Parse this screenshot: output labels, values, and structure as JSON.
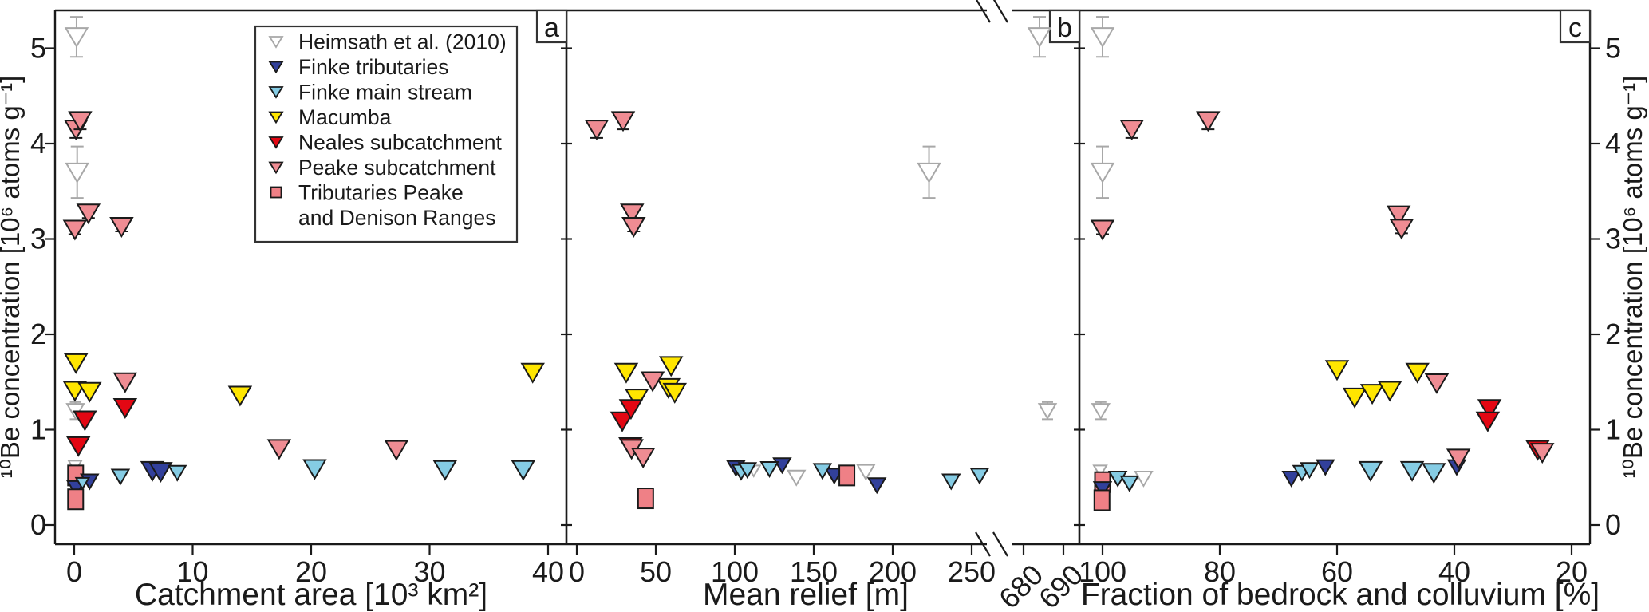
{
  "figure": {
    "y_axis_label": "¹⁰Be concentration [10⁶ atoms g⁻¹]",
    "y_ticks": [
      0,
      1,
      2,
      3,
      4,
      5
    ],
    "y_range": [
      0,
      5.4
    ]
  },
  "legend": {
    "items": [
      {
        "label": "Heimsath et al. (2010)",
        "marker": "triangle-down-open",
        "fill": "#ffffff",
        "stroke": "#a8a8a8"
      },
      {
        "label": "Finke tributaries",
        "marker": "triangle-down",
        "fill": "#32409b",
        "stroke": "#1a1a1a"
      },
      {
        "label": "Finke main stream",
        "marker": "triangle-down",
        "fill": "#85cce4",
        "stroke": "#1a1a1a"
      },
      {
        "label": "Macumba",
        "marker": "triangle-down",
        "fill": "#ffe600",
        "stroke": "#1a1a1a"
      },
      {
        "label": "Neales subcatchment",
        "marker": "triangle-down",
        "fill": "#e30713",
        "stroke": "#1a1a1a"
      },
      {
        "label": "Peake subcatchment",
        "marker": "triangle-down",
        "fill": "#ef8c93",
        "stroke": "#1a1a1a"
      },
      {
        "label": "Tributaries Peake",
        "label2": "and Denison Ranges",
        "marker": "square",
        "fill": "#ef8086",
        "stroke": "#1a1a1a"
      }
    ]
  },
  "chart_data": [
    {
      "panel_label": "a",
      "type": "scatter",
      "xlabel": "Catchment area [10³ km²]",
      "x_ticks": [
        0,
        10,
        20,
        30,
        40
      ],
      "x_range": [
        -1.6,
        41.5
      ],
      "series": [
        {
          "key": "heimsath",
          "name": "Heimsath et al. (2010)",
          "points": [
            {
              "x": 0.2,
              "y": 5.12,
              "e": 0.21,
              "s": "L"
            },
            {
              "x": 0.25,
              "y": 3.7,
              "e": 0.27,
              "s": "L"
            },
            {
              "x": 0.1,
              "y": 1.2,
              "e": 0.09,
              "s": "M"
            },
            {
              "x": 0.07,
              "y": 0.62,
              "e": 0.05,
              "s": "S"
            }
          ]
        },
        {
          "key": "squares",
          "name": "Tributaries Peake and Denison Ranges",
          "points": [
            {
              "x": 0.12,
              "y": 0.52,
              "z": 1
            },
            {
              "x": 0.12,
              "y": 0.27,
              "z": 5.5
            }
          ]
        },
        {
          "key": "finke_trib",
          "name": "Finke tributaries",
          "points": [
            {
              "x": 6.6,
              "y": 0.57,
              "s": "L"
            },
            {
              "x": 7.3,
              "y": 0.56,
              "s": "L"
            },
            {
              "x": 1.3,
              "y": 0.46,
              "s": "M"
            },
            {
              "x": 0.15,
              "y": 0.39,
              "s": "M"
            }
          ]
        },
        {
          "key": "finke_main",
          "name": "Finke main stream",
          "points": [
            {
              "x": 3.9,
              "y": 0.51,
              "s": "M"
            },
            {
              "x": 8.7,
              "y": 0.55,
              "s": "M"
            },
            {
              "x": 20.3,
              "y": 0.59,
              "s": "L"
            },
            {
              "x": 31.3,
              "y": 0.58,
              "s": "L"
            },
            {
              "x": 37.9,
              "y": 0.58,
              "s": "L"
            },
            {
              "x": 0.7,
              "y": 0.44,
              "s": "S"
            }
          ]
        },
        {
          "key": "macumba",
          "name": "Macumba",
          "points": [
            {
              "x": 0.15,
              "y": 1.7,
              "s": "L"
            },
            {
              "x": 0.06,
              "y": 1.41,
              "s": "L"
            },
            {
              "x": 1.3,
              "y": 1.4,
              "s": "L"
            },
            {
              "x": 14,
              "y": 1.36,
              "s": "L"
            },
            {
              "x": 38.7,
              "y": 1.6,
              "s": "L"
            }
          ]
        },
        {
          "key": "neales",
          "name": "Neales subcatchment",
          "points": [
            {
              "x": 0.9,
              "y": 1.1,
              "s": "L"
            },
            {
              "x": 4.3,
              "y": 1.23,
              "s": "L"
            },
            {
              "x": 0.35,
              "y": 0.83,
              "s": "L"
            }
          ]
        },
        {
          "key": "peake",
          "name": "Peake subcatchment",
          "points": [
            {
              "x": 0.15,
              "y": 4.15,
              "e": 0.09,
              "s": "L"
            },
            {
              "x": 0.5,
              "y": 4.24,
              "e": 0.09,
              "s": "L"
            },
            {
              "x": 0.06,
              "y": 3.1,
              "e": 0.05,
              "s": "L"
            },
            {
              "x": 1.2,
              "y": 3.27,
              "e": 0.05,
              "s": "L"
            },
            {
              "x": 4.0,
              "y": 3.13,
              "e": 0.05,
              "s": "L"
            },
            {
              "x": 4.3,
              "y": 1.5,
              "s": "L"
            },
            {
              "x": 17.3,
              "y": 0.8,
              "s": "L"
            },
            {
              "x": 27.2,
              "y": 0.79,
              "s": "L"
            }
          ]
        }
      ]
    },
    {
      "panel_label": "b",
      "type": "scatter",
      "xlabel": "Mean relief [m]",
      "x_ticks": [
        0,
        50,
        100,
        150,
        200,
        250
      ],
      "x_ticks_after_break": [
        680,
        690
      ],
      "x_range": [
        -6.5,
        260
      ],
      "x_break": [
        260,
        680
      ],
      "series": [
        {
          "key": "heimsath",
          "name": "Heimsath et al. (2010)",
          "points": [
            {
              "x": 684,
              "y": 5.12,
              "e": 0.21,
              "s": "L"
            },
            {
              "x": 223,
              "y": 3.7,
              "e": 0.27,
              "s": "L"
            },
            {
              "x": 686,
              "y": 1.2,
              "e": 0.09,
              "s": "M"
            },
            {
              "x": 112,
              "y": 0.57,
              "s": "S"
            },
            {
              "x": 139,
              "y": 0.5,
              "s": "M"
            },
            {
              "x": 183,
              "y": 0.56,
              "s": "M"
            }
          ]
        },
        {
          "key": "squares",
          "name": "Tributaries Peake and Denison Ranges",
          "points": [
            {
              "x": 43.6,
              "y": 0.28,
              "z": 1
            },
            {
              "x": 171,
              "y": 0.52,
              "z": 5.5
            }
          ]
        },
        {
          "key": "finke_trib",
          "name": "Finke tributaries",
          "points": [
            {
              "x": 100.7,
              "y": 0.6,
              "s": "M"
            },
            {
              "x": 130,
              "y": 0.63,
              "s": "M"
            },
            {
              "x": 163,
              "y": 0.52,
              "s": "M"
            },
            {
              "x": 190,
              "y": 0.42,
              "s": "M"
            }
          ]
        },
        {
          "key": "finke_main",
          "name": "Finke main stream",
          "points": [
            {
              "x": 104,
              "y": 0.56,
              "s": "M"
            },
            {
              "x": 108,
              "y": 0.58,
              "s": "M"
            },
            {
              "x": 122,
              "y": 0.59,
              "s": "M"
            },
            {
              "x": 155.5,
              "y": 0.57,
              "s": "M"
            },
            {
              "x": 237,
              "y": 0.46,
              "s": "M"
            },
            {
              "x": 255,
              "y": 0.52,
              "s": "M"
            }
          ]
        },
        {
          "key": "macumba",
          "name": "Macumba",
          "points": [
            {
              "x": 31.3,
              "y": 1.6,
              "s": "L"
            },
            {
              "x": 38,
              "y": 1.33,
              "s": "L"
            },
            {
              "x": 58,
              "y": 1.44,
              "s": "L"
            },
            {
              "x": 62,
              "y": 1.39,
              "s": "L"
            },
            {
              "x": 59.7,
              "y": 1.67,
              "s": "L"
            }
          ]
        },
        {
          "key": "neales",
          "name": "Neales subcatchment",
          "points": [
            {
              "x": 28.8,
              "y": 1.09,
              "s": "L"
            },
            {
              "x": 34.3,
              "y": 1.22,
              "s": "L"
            },
            {
              "x": 34,
              "y": 0.82,
              "s": "L"
            }
          ]
        },
        {
          "key": "peake",
          "name": "Peake subcatchment",
          "points": [
            {
              "x": 12.6,
              "y": 4.15,
              "e": 0.09,
              "s": "L"
            },
            {
              "x": 29.3,
              "y": 4.24,
              "e": 0.09,
              "s": "L"
            },
            {
              "x": 35,
              "y": 3.27,
              "e": 0.05,
              "s": "L"
            },
            {
              "x": 36,
              "y": 3.13,
              "e": 0.05,
              "s": "L"
            },
            {
              "x": 48,
              "y": 1.51,
              "s": "L"
            },
            {
              "x": 34.7,
              "y": 0.8,
              "s": "L"
            },
            {
              "x": 42,
              "y": 0.71,
              "s": "L"
            }
          ]
        }
      ]
    },
    {
      "panel_label": "c",
      "type": "scatter",
      "xlabel": "Fraction of bedrock and colluvium [%]",
      "x_ticks": [
        100,
        80,
        60,
        40,
        20
      ],
      "x_range": [
        103.9,
        16.9
      ],
      "x_reversed": true,
      "series": [
        {
          "key": "heimsath",
          "name": "Heimsath et al. (2010)",
          "points": [
            {
              "x": 100,
              "y": 5.12,
              "e": 0.21,
              "s": "L"
            },
            {
              "x": 100,
              "y": 3.7,
              "e": 0.27,
              "s": "L"
            },
            {
              "x": 100.3,
              "y": 1.2,
              "e": 0.09,
              "s": "M"
            },
            {
              "x": 100.4,
              "y": 0.57,
              "s": "S"
            },
            {
              "x": 93,
              "y": 0.49,
              "s": "M"
            }
          ]
        },
        {
          "key": "squares",
          "name": "Tributaries Peake and Denison Ranges",
          "points": [
            {
              "x": 100,
              "y": 0.45,
              "z": 1
            },
            {
              "x": 100.1,
              "y": 0.26,
              "z": 5.5
            }
          ]
        },
        {
          "key": "finke_trib",
          "name": "Finke tributaries",
          "points": [
            {
              "x": 67.8,
              "y": 0.49,
              "s": "M"
            },
            {
              "x": 62,
              "y": 0.61,
              "s": "M"
            },
            {
              "x": 39.6,
              "y": 0.61,
              "s": "M"
            },
            {
              "x": 100,
              "y": 0.38,
              "s": "M"
            }
          ]
        },
        {
          "key": "finke_main",
          "name": "Finke main stream",
          "points": [
            {
              "x": 66,
              "y": 0.55,
              "s": "M"
            },
            {
              "x": 64.7,
              "y": 0.58,
              "s": "M"
            },
            {
              "x": 54.3,
              "y": 0.57,
              "s": "L"
            },
            {
              "x": 47.2,
              "y": 0.57,
              "s": "L"
            },
            {
              "x": 43.5,
              "y": 0.55,
              "s": "L"
            },
            {
              "x": 97.4,
              "y": 0.49,
              "s": "M"
            },
            {
              "x": 95.4,
              "y": 0.44,
              "s": "M"
            }
          ]
        },
        {
          "key": "macumba",
          "name": "Macumba",
          "points": [
            {
              "x": 60,
              "y": 1.63,
              "s": "L"
            },
            {
              "x": 57,
              "y": 1.34,
              "s": "L"
            },
            {
              "x": 54,
              "y": 1.38,
              "s": "L"
            },
            {
              "x": 51,
              "y": 1.41,
              "s": "L"
            },
            {
              "x": 46.3,
              "y": 1.6,
              "s": "L"
            }
          ]
        },
        {
          "key": "neales",
          "name": "Neales subcatchment",
          "points": [
            {
              "x": 34,
              "y": 1.22,
              "s": "L"
            },
            {
              "x": 34.3,
              "y": 1.09,
              "s": "L"
            },
            {
              "x": 25.8,
              "y": 0.79,
              "s": "L"
            }
          ]
        },
        {
          "key": "peake",
          "name": "Peake subcatchment",
          "points": [
            {
              "x": 95,
              "y": 4.15,
              "e": 0.09,
              "s": "L"
            },
            {
              "x": 82,
              "y": 4.24,
              "e": 0.09,
              "s": "L"
            },
            {
              "x": 100,
              "y": 3.1,
              "e": 0.05,
              "s": "L"
            },
            {
              "x": 49.5,
              "y": 3.25,
              "e": 0.05,
              "s": "L"
            },
            {
              "x": 49,
              "y": 3.11,
              "e": 0.05,
              "s": "L"
            },
            {
              "x": 43,
              "y": 1.49,
              "s": "L"
            },
            {
              "x": 39.3,
              "y": 0.7,
              "s": "L"
            },
            {
              "x": 25,
              "y": 0.76,
              "s": "L"
            }
          ]
        }
      ]
    }
  ],
  "series_styles": {
    "heimsath": {
      "fill": "#ffffff",
      "stroke": "#a8a8a8",
      "err": "#a8a8a8"
    },
    "finke_trib": {
      "fill": "#32409b",
      "stroke": "#1a1a1a",
      "err": "#1a1a1a"
    },
    "finke_main": {
      "fill": "#85cce4",
      "stroke": "#1a1a1a",
      "err": "#1a1a1a"
    },
    "macumba": {
      "fill": "#ffe600",
      "stroke": "#1a1a1a",
      "err": "#1a1a1a"
    },
    "neales": {
      "fill": "#e30713",
      "stroke": "#1a1a1a",
      "err": "#1a1a1a"
    },
    "peake": {
      "fill": "#ef8c93",
      "stroke": "#1a1a1a",
      "err": "#1a1a1a"
    },
    "squares": {
      "fill": "#ef8086",
      "stroke": "#1a1a1a",
      "err": "#1a1a1a"
    }
  }
}
